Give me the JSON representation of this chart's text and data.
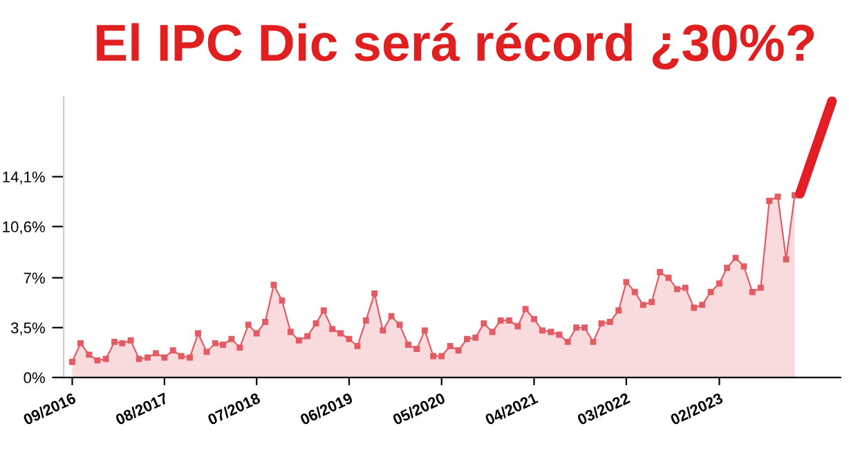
{
  "chart_data": {
    "type": "area",
    "title": "El IPC Dic será récord ¿30%?",
    "x": [
      "2016-09",
      "2016-10",
      "2016-11",
      "2016-12",
      "2017-01",
      "2017-02",
      "2017-03",
      "2017-04",
      "2017-05",
      "2017-06",
      "2017-07",
      "2017-08",
      "2017-09",
      "2017-10",
      "2017-11",
      "2017-12",
      "2018-01",
      "2018-02",
      "2018-03",
      "2018-04",
      "2018-05",
      "2018-06",
      "2018-07",
      "2018-08",
      "2018-09",
      "2018-10",
      "2018-11",
      "2018-12",
      "2019-01",
      "2019-02",
      "2019-03",
      "2019-04",
      "2019-05",
      "2019-06",
      "2019-07",
      "2019-08",
      "2019-09",
      "2019-10",
      "2019-11",
      "2019-12",
      "2020-01",
      "2020-02",
      "2020-03",
      "2020-04",
      "2020-05",
      "2020-06",
      "2020-07",
      "2020-08",
      "2020-09",
      "2020-10",
      "2020-11",
      "2020-12",
      "2021-01",
      "2021-02",
      "2021-03",
      "2021-04",
      "2021-05",
      "2021-06",
      "2021-07",
      "2021-08",
      "2021-09",
      "2021-10",
      "2021-11",
      "2021-12",
      "2022-01",
      "2022-02",
      "2022-03",
      "2022-04",
      "2022-05",
      "2022-06",
      "2022-07",
      "2022-08",
      "2022-09",
      "2022-10",
      "2022-11",
      "2022-12",
      "2023-01",
      "2023-02",
      "2023-03",
      "2023-04",
      "2023-05",
      "2023-06",
      "2023-07",
      "2023-08",
      "2023-09",
      "2023-10",
      "2023-11"
    ],
    "series": [
      {
        "color": "#e35b63",
        "marker": "square",
        "values": [
          1.1,
          2.4,
          1.6,
          1.2,
          1.3,
          2.5,
          2.4,
          2.6,
          1.3,
          1.4,
          1.7,
          1.4,
          1.9,
          1.5,
          1.4,
          3.1,
          1.8,
          2.4,
          2.3,
          2.7,
          2.1,
          3.7,
          3.1,
          3.9,
          6.5,
          5.4,
          3.2,
          2.6,
          2.9,
          3.8,
          4.7,
          3.4,
          3.1,
          2.7,
          2.2,
          4.0,
          5.9,
          3.3,
          4.3,
          3.7,
          2.3,
          2.0,
          3.3,
          1.5,
          1.5,
          2.2,
          1.9,
          2.7,
          2.8,
          3.8,
          3.2,
          4.0,
          4.0,
          3.6,
          4.8,
          4.1,
          3.3,
          3.2,
          3.0,
          2.5,
          3.5,
          3.5,
          2.5,
          3.8,
          3.9,
          4.7,
          6.7,
          6.0,
          5.1,
          5.3,
          7.4,
          7.0,
          6.2,
          6.3,
          4.9,
          5.1,
          6.0,
          6.6,
          7.7,
          8.4,
          7.8,
          6.0,
          6.3,
          12.4,
          12.7,
          8.3,
          12.8
        ]
      },
      {
        "type": "line",
        "color": "#e41e26",
        "marker": "none",
        "x": [
          "2023-11-20",
          "2024-03-15"
        ],
        "values": [
          12.9,
          19.4
        ]
      }
    ],
    "xlim": [
      "2016-08-01",
      "2024-04-15"
    ],
    "xticks": [
      {
        "value": "2016-09",
        "label": "09/2016"
      },
      {
        "value": "2017-08",
        "label": "08/2017"
      },
      {
        "value": "2018-07",
        "label": "07/2018"
      },
      {
        "value": "2019-06",
        "label": "06/2019"
      },
      {
        "value": "2020-05",
        "label": "05/2020"
      },
      {
        "value": "2021-04",
        "label": "04/2021"
      },
      {
        "value": "2022-03",
        "label": "03/2022"
      },
      {
        "value": "2023-02",
        "label": "02/2023"
      }
    ],
    "ylim": [
      0,
      19.7
    ],
    "yticks": [
      {
        "value": 0,
        "label": "0%"
      },
      {
        "value": 3.5,
        "label": "3,5%"
      },
      {
        "value": 7,
        "label": "7%"
      },
      {
        "value": 10.6,
        "label": "10,6%"
      },
      {
        "value": 14.1,
        "label": "14,1%"
      }
    ],
    "grid": false,
    "legend": false
  }
}
